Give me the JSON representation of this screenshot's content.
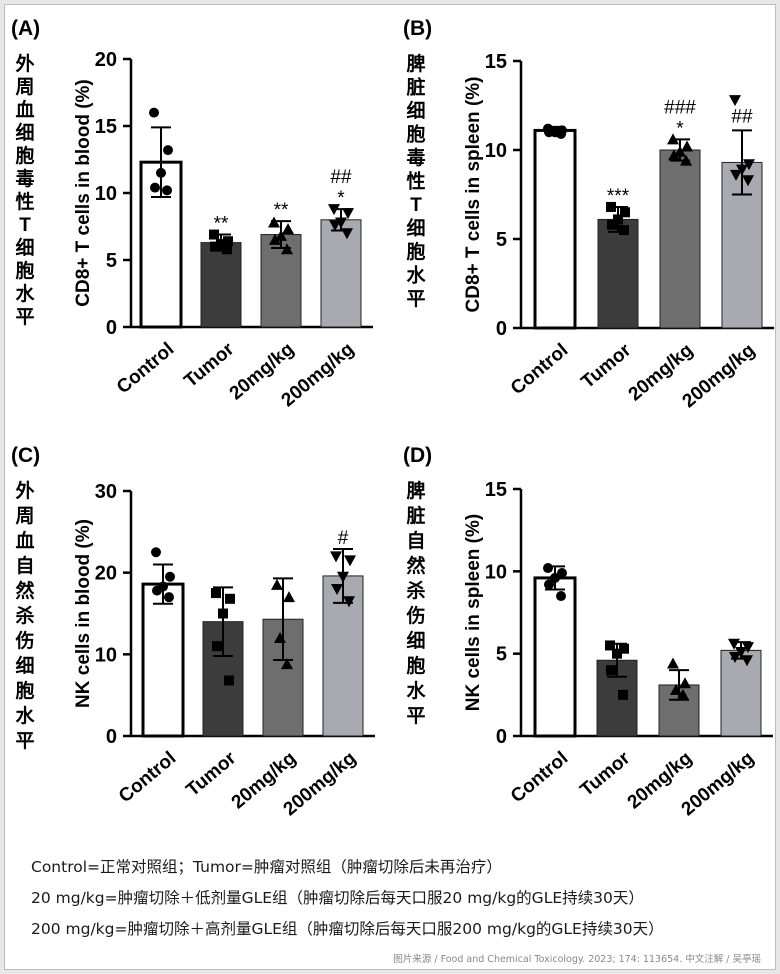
{
  "chart_data": [
    {
      "type": "bar",
      "panel": "(A)",
      "cn_label": [
        "外",
        "周",
        "血",
        "细",
        "胞",
        "毒",
        "性",
        "T",
        "细",
        "胞",
        "水",
        "平"
      ],
      "ylabel": "CD8+ T cells in blood (%)",
      "ylim": [
        0,
        20
      ],
      "yticks": [
        "0",
        "5",
        "10",
        "15",
        "20"
      ],
      "categories": [
        "Control",
        "Tumor",
        "20mg/kg",
        "200mg/kg"
      ],
      "values": [
        12.3,
        6.3,
        6.9,
        8.0
      ],
      "errors": [
        2.6,
        0.6,
        1.0,
        0.8
      ],
      "points": [
        [
          16.0,
          13.2,
          11.5,
          10.4,
          10.2
        ],
        [
          6.9,
          6.4,
          6.2,
          6.0,
          5.8
        ],
        [
          7.8,
          7.3,
          6.8,
          6.5,
          5.8
        ],
        [
          8.8,
          8.5,
          7.8,
          7.6,
          7.0
        ]
      ],
      "annotations": [
        [
          "",
          ""
        ],
        [
          "",
          "**"
        ],
        [
          "",
          "**"
        ],
        [
          "##",
          "*"
        ]
      ]
    },
    {
      "type": "bar",
      "panel": "(B)",
      "cn_label": [
        "脾",
        "脏",
        "细",
        "胞",
        "毒",
        "性",
        "T",
        "细",
        "胞",
        "水",
        "平"
      ],
      "ylabel": "CD8+ T cells in spleen (%)",
      "ylim": [
        0,
        15
      ],
      "yticks": [
        "0",
        "5",
        "10",
        "15"
      ],
      "categories": [
        "Control",
        "Tumor",
        "20mg/kg",
        "200mg/kg"
      ],
      "values": [
        11.1,
        6.1,
        10.0,
        9.3
      ],
      "errors": [
        0.2,
        0.7,
        0.6,
        1.8
      ],
      "points": [
        [
          11.2,
          11.1,
          11.0,
          11.0,
          10.9
        ],
        [
          6.8,
          6.5,
          6.1,
          5.8,
          5.5
        ],
        [
          10.6,
          10.2,
          9.9,
          9.7,
          9.4
        ],
        [
          12.8,
          9.2,
          8.9,
          8.6,
          8.3
        ]
      ],
      "annotations": [
        [
          "",
          ""
        ],
        [
          "",
          "***"
        ],
        [
          "###",
          "*"
        ],
        [
          "##",
          ""
        ]
      ]
    },
    {
      "type": "bar",
      "panel": "(C)",
      "cn_label": [
        "外",
        "周",
        "血",
        "自",
        "然",
        "杀",
        "伤",
        "细",
        "胞",
        "水",
        "平"
      ],
      "ylabel": "NK cells in blood (%)",
      "ylim": [
        0,
        30
      ],
      "yticks": [
        "0",
        "10",
        "20",
        "30"
      ],
      "categories": [
        "Control",
        "Tumor",
        "20mg/kg",
        "200mg/kg"
      ],
      "values": [
        18.6,
        14.0,
        14.3,
        19.6
      ],
      "errors": [
        2.4,
        4.2,
        5.0,
        3.3
      ],
      "points": [
        [
          22.5,
          19.5,
          18.3,
          17.8,
          17.0
        ],
        [
          17.5,
          16.8,
          15.0,
          11.0,
          6.8
        ],
        [
          18.5,
          17.0,
          12.0,
          8.8
        ],
        [
          22.0,
          21.5,
          19.5,
          18.0,
          16.5
        ]
      ],
      "annotations": [
        [
          "",
          ""
        ],
        [
          "",
          ""
        ],
        [
          "",
          ""
        ],
        [
          "",
          "#"
        ]
      ]
    },
    {
      "type": "bar",
      "panel": "(D)",
      "cn_label": [
        "脾",
        "脏",
        "自",
        "然",
        "杀",
        "伤",
        "细",
        "胞",
        "水",
        "平"
      ],
      "ylabel": "NK cells in spleen (%)",
      "ylim": [
        0,
        15
      ],
      "yticks": [
        "0",
        "5",
        "10",
        "15"
      ],
      "categories": [
        "Control",
        "Tumor",
        "20mg/kg",
        "200mg/kg"
      ],
      "values": [
        9.6,
        4.6,
        3.1,
        5.2
      ],
      "errors": [
        0.7,
        1.0,
        0.9,
        0.5
      ],
      "points": [
        [
          10.2,
          9.9,
          9.6,
          9.2,
          8.5
        ],
        [
          5.5,
          5.3,
          5.0,
          4.0,
          2.5
        ],
        [
          4.4,
          3.2,
          2.8,
          2.5
        ],
        [
          5.6,
          5.4,
          5.1,
          4.8,
          4.6
        ]
      ],
      "annotations": [
        [
          "",
          ""
        ],
        [
          "",
          ""
        ],
        [
          "",
          ""
        ],
        [
          "",
          ""
        ]
      ]
    }
  ],
  "colors": {
    "control_fill": "#ffffff",
    "tumor_fill": "#3c3c3c",
    "low_dose_fill": "#6e6e6e",
    "high_dose_fill": "#a9a9b1",
    "axis": "#000000"
  },
  "markers": [
    "circle",
    "square",
    "triangle-up",
    "triangle-down"
  ],
  "notes": [
    "Control=正常对照组；Tumor=肿瘤对照组（肿瘤切除后未再治疗）",
    "20 mg/kg=肿瘤切除＋低剂量GLE组（肿瘤切除后每天口服20 mg/kg的GLE持续30天）",
    "200 mg/kg=肿瘤切除＋高剂量GLE组（肿瘤切除后每天口服200 mg/kg的GLE持续30天）"
  ],
  "credit": "图片来源 / Food and Chemical Toxicology. 2023; 174: 113654.   中文注解 / 吴亭瑶"
}
